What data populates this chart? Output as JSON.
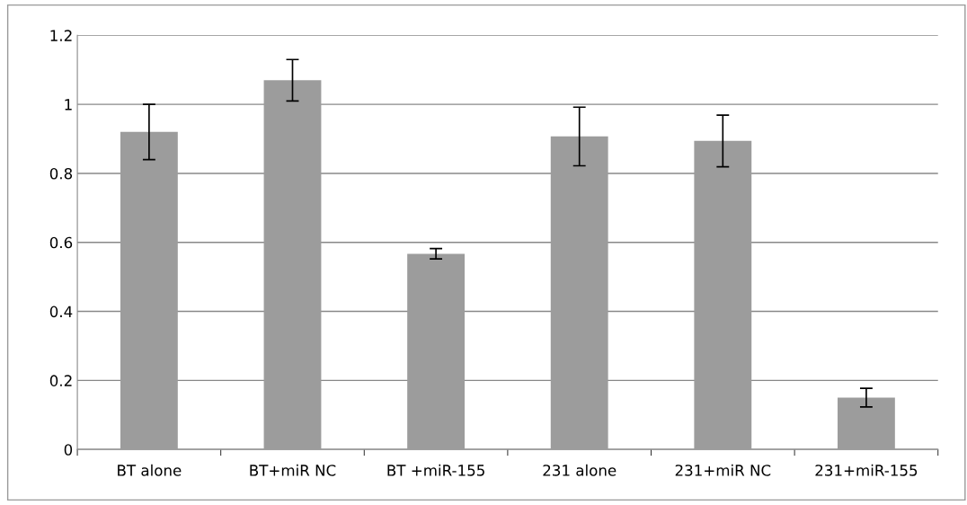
{
  "chart_data": {
    "type": "bar",
    "categories": [
      "BT alone",
      "BT+miR NC",
      "BT +miR-155",
      "231 alone",
      "231+miR NC",
      "231+miR-155"
    ],
    "values": [
      0.92,
      1.07,
      0.567,
      0.907,
      0.894,
      0.15
    ],
    "errors": [
      0.08,
      0.06,
      0.015,
      0.085,
      0.075,
      0.027
    ],
    "color": "#9c9c9c",
    "ylim": [
      0,
      1.2
    ],
    "yticks": [
      0,
      0.2,
      0.4,
      0.6,
      0.8,
      1,
      1.2
    ],
    "grid": "y"
  }
}
